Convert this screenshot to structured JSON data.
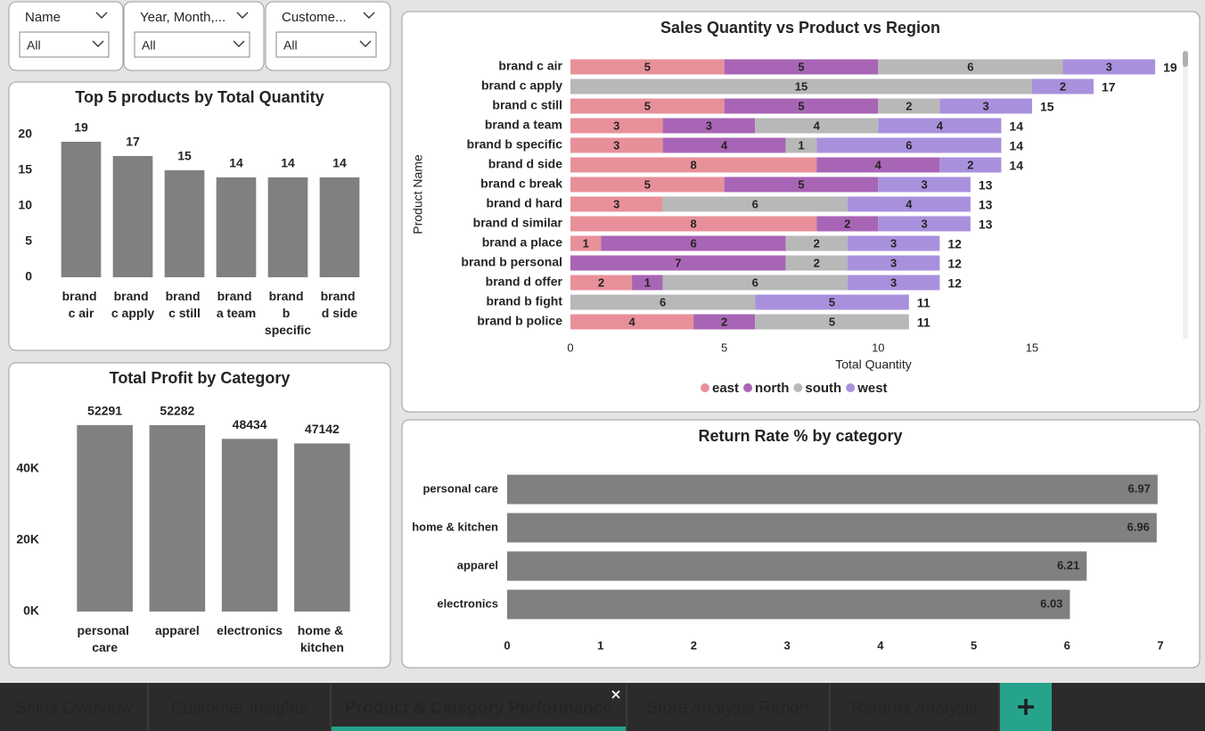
{
  "filters": [
    {
      "label": "Name",
      "value": "All"
    },
    {
      "label": "Year, Month,...",
      "value": "All"
    },
    {
      "label": "Custome...",
      "value": "All"
    }
  ],
  "chart_data": [
    {
      "type": "bar",
      "title": "Top 5 products by Total Quantity",
      "categories": [
        "brand c air",
        "brand c apply",
        "brand c still",
        "brand a team",
        "brand b specific",
        "brand d side"
      ],
      "values": [
        19,
        17,
        15,
        14,
        14,
        14
      ],
      "color": "#808080",
      "ylim": [
        0,
        20
      ],
      "yticks": [
        0,
        5,
        10,
        15,
        20
      ]
    },
    {
      "type": "bar",
      "title": "Total Profit by Category",
      "categories": [
        "personal care",
        "apparel",
        "electronics",
        "home & kitchen"
      ],
      "values": [
        52291,
        52282,
        48434,
        47142
      ],
      "color": "#808080",
      "ylim": [
        0,
        55000
      ],
      "yticks": [
        {
          "value": 0,
          "label": "0K"
        },
        {
          "value": 20000,
          "label": "20K"
        },
        {
          "value": 40000,
          "label": "40K"
        }
      ]
    },
    {
      "type": "stacked_hbar",
      "title": "Sales Quantity vs Product vs Region",
      "y_label": "Product Name",
      "x_label": "Total Quantity",
      "categories": [
        "brand c air",
        "brand c apply",
        "brand c still",
        "brand a team",
        "brand b specific",
        "brand d side",
        "brand c break",
        "brand d hard",
        "brand d similar",
        "brand a place",
        "brand b personal",
        "brand d offer",
        "brand b fight",
        "brand b police"
      ],
      "series": [
        {
          "name": "east",
          "color": "#e8909a",
          "values": [
            5,
            null,
            5,
            3,
            3,
            8,
            5,
            3,
            8,
            1,
            null,
            2,
            null,
            4
          ]
        },
        {
          "name": "north",
          "color": "#a865b5",
          "values": [
            5,
            null,
            5,
            3,
            4,
            4,
            5,
            null,
            2,
            6,
            7,
            1,
            null,
            2
          ]
        },
        {
          "name": "south",
          "color": "#b8b8b8",
          "values": [
            6,
            15,
            2,
            4,
            1,
            null,
            null,
            6,
            null,
            2,
            2,
            6,
            6,
            5
          ]
        },
        {
          "name": "west",
          "color": "#a990dd",
          "values": [
            3,
            2,
            3,
            4,
            6,
            2,
            3,
            4,
            3,
            3,
            3,
            3,
            5,
            null
          ]
        }
      ],
      "total_labels": [
        19,
        17,
        15,
        14,
        14,
        14,
        13,
        13,
        13,
        12,
        12,
        12,
        11,
        11
      ],
      "xlim": [
        0,
        20
      ],
      "xticks": [
        0,
        5,
        10,
        15
      ],
      "legend": "bottom"
    },
    {
      "type": "hbar",
      "title": "Return Rate % by category",
      "categories": [
        "personal care",
        "home & kitchen",
        "apparel",
        "electronics"
      ],
      "values": [
        6.97,
        6.96,
        6.21,
        6.03
      ],
      "color": "#808080",
      "xlim": [
        0,
        7
      ],
      "xticks": [
        0,
        1,
        2,
        3,
        4,
        5,
        6,
        7
      ]
    }
  ],
  "tabs": {
    "items": [
      "Sales Overview",
      "Customer Insights",
      "Product & Category Performance",
      "Store Analysis Report",
      "Returns Analysis"
    ],
    "active": 2
  }
}
